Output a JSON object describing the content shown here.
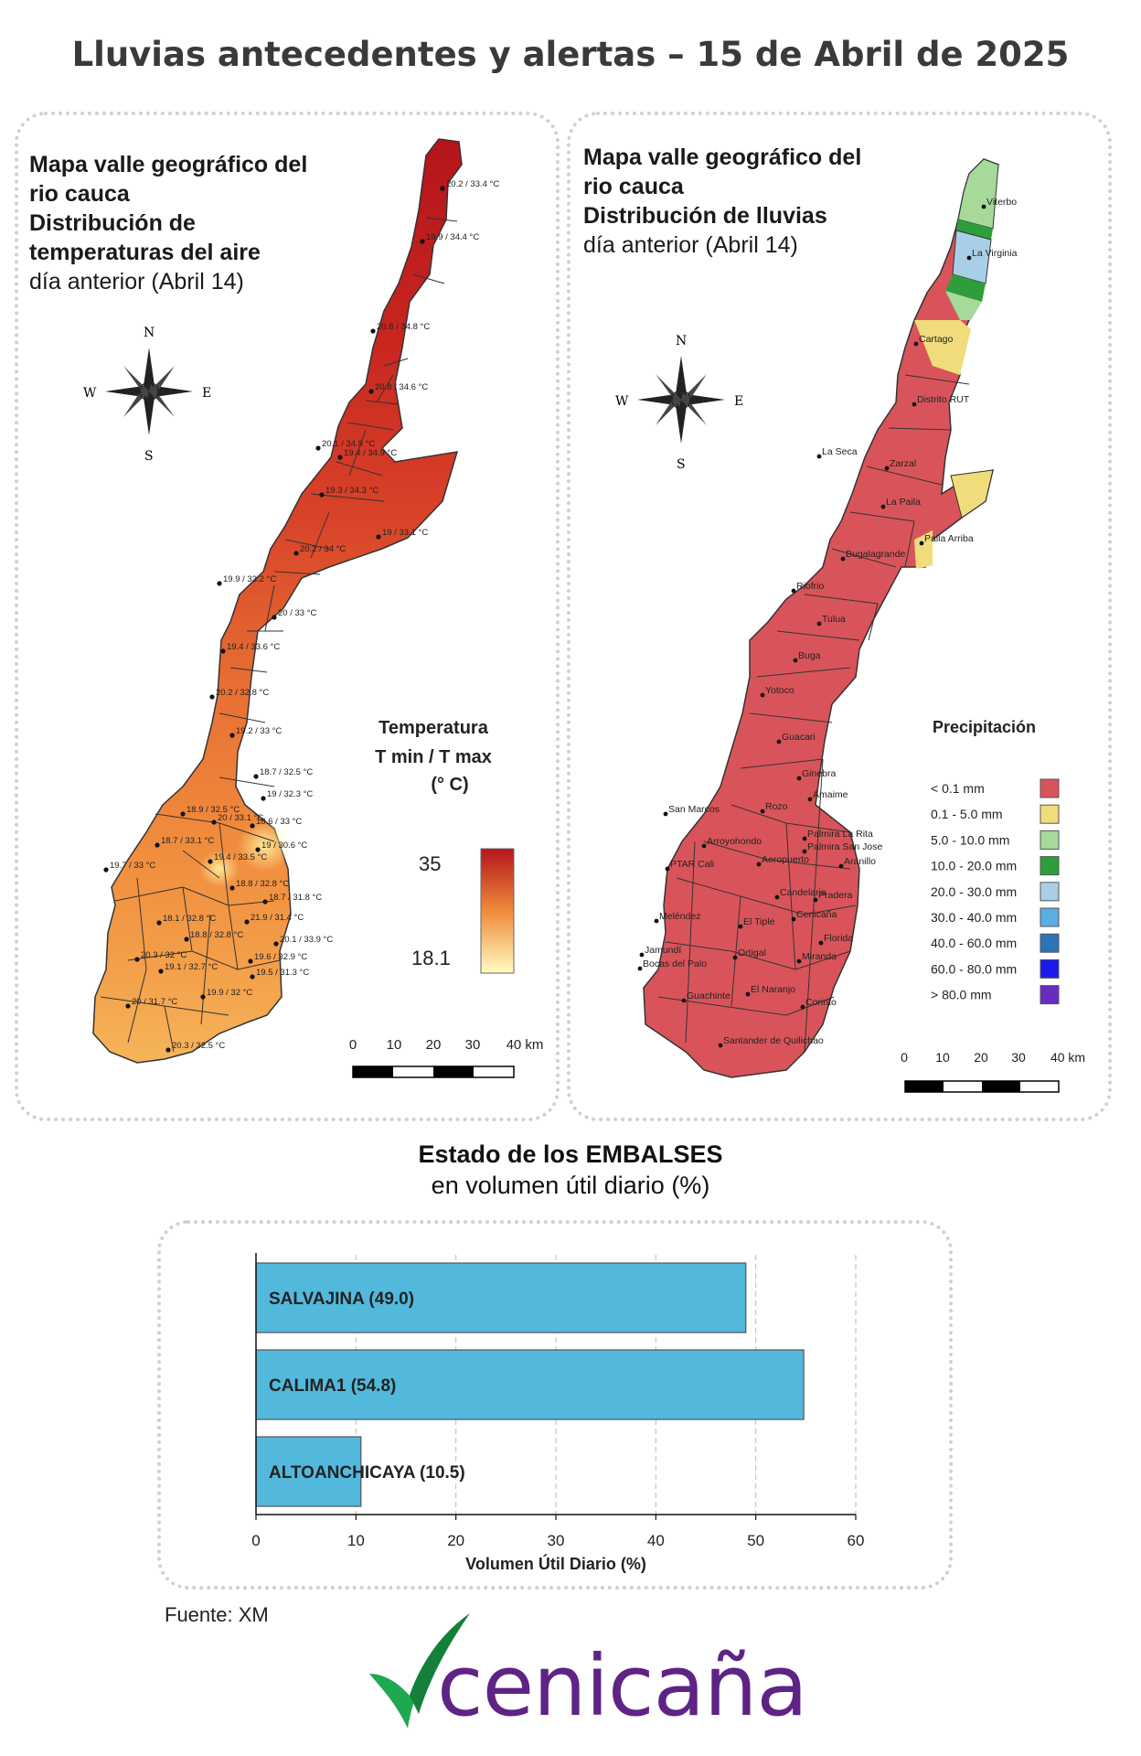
{
  "title": "Lluvias antecedentes y alertas – 15 de Abril de 2025",
  "temperature_map": {
    "title_line1": "Mapa valle geográfico del",
    "title_line2": "rio cauca",
    "title_line3": "Distribución de",
    "title_line4": "temperaturas del aire",
    "title_line5": "día anterior (Abril 14)",
    "compass": {
      "n": "N",
      "s": "S",
      "e": "E",
      "w": "W"
    },
    "legend_line1": "Temperatura",
    "legend_line2": "T min / T max",
    "legend_line3": "(° C)",
    "legend_max": "35",
    "legend_min": "18.1",
    "scale": [
      "0",
      "10",
      "20",
      "30",
      "40 km"
    ],
    "stations": [
      "20.2 / 33.4 °C",
      "19.9 / 34.4 °C",
      "20.8 / 34.8 °C",
      "20.8 / 34.6 °C",
      "20.1 / 34.9 °C",
      "19.4 / 34.9 °C",
      "19.3 / 34.3 °C",
      "19 / 33.1 °C",
      "20.2 / 34 °C",
      "19.9 / 33.2 °C",
      "20 / 33 °C",
      "19.4 / 33.6 °C",
      "20.2 / 32.8 °C",
      "19.2 / 33 °C",
      "18.7 / 32.5 °C",
      "19 / 32.3 °C",
      "18.9 / 32.5 °C",
      "20 / 33.1 °C",
      "18.6 / 33 °C",
      "18.7 / 33.1 °C",
      "19 / 30.6 °C",
      "19.4 / 33.5 °C",
      "19.7 / 33 °C",
      "18.8 / 32.8 °C",
      "18.7 / 31.8 °C",
      "18.1 / 32.8 °C",
      "21.9 / 31.4 °C",
      "18.8 / 32.8 °C",
      "20.1 / 33.9 °C",
      "20.3 / 32 °C",
      "19.6 / 32.9 °C",
      "19.1 / 32.7 °C",
      "19.5 / 31.3 °C",
      "19.9 / 32 °C",
      "20 / 31.7 °C",
      "20.3 / 32.5 °C"
    ]
  },
  "rain_map": {
    "title_line1": "Mapa valle geográfico del",
    "title_line2": "rio cauca",
    "title_line3": "Distribución de lluvias",
    "title_line4": "día anterior (Abril 14)",
    "compass": {
      "n": "N",
      "s": "S",
      "e": "E",
      "w": "W"
    },
    "legend_title": "Precipitación",
    "legend": [
      {
        "label": "< 0.1 mm",
        "color": "#d9545a"
      },
      {
        "label": "0.1 - 5.0 mm",
        "color": "#f0dc7a"
      },
      {
        "label": "5.0 - 10.0 mm",
        "color": "#a6d99a"
      },
      {
        "label": "10.0 - 20.0 mm",
        "color": "#2e9e3a"
      },
      {
        "label": "20.0 - 30.0 mm",
        "color": "#a9cfe8"
      },
      {
        "label": "30.0 - 40.0 mm",
        "color": "#5aaee3"
      },
      {
        "label": "40.0 - 60.0 mm",
        "color": "#2c74b8"
      },
      {
        "label": "60.0 - 80.0 mm",
        "color": "#1a1aee"
      },
      {
        "label": "> 80.0 mm",
        "color": "#6a2bc0"
      }
    ],
    "scale": [
      "0",
      "10",
      "20",
      "30",
      "40 km"
    ],
    "places": [
      "Viterbo",
      "La Virginia",
      "Cartago",
      "Distrito RUT",
      "La Seca",
      "Zarzal",
      "La Paila",
      "Paila Arriba",
      "Bugalagrande",
      "Riofrio",
      "Tulua",
      "Buga",
      "Yotoco",
      "Guacari",
      "Ginebra",
      "Amaime",
      "San Marcos",
      "Rozo",
      "Palmira La Rita",
      "Arroyohondo",
      "Palmira San Jose",
      "Aeropuerto",
      "Aranillo",
      "PTAR Cali",
      "Candelaria",
      "Pradera",
      "Cenicaña",
      "Meléndez",
      "El Tiple",
      "Florida",
      "Jamundí",
      "Bocas del Palo",
      "Ortigal",
      "Miranda",
      "Guachinte",
      "El Naranjo",
      "Corinto",
      "Santander de Quilichao"
    ]
  },
  "reservoirs": {
    "title_line1": "Estado de los EMBALSES",
    "title_line2": "en volumen útil diario (%)",
    "source": "Fuente: XM"
  },
  "chart_data": {
    "type": "bar",
    "orientation": "horizontal",
    "categories": [
      "SALVAJINA (49.0)",
      "CALIMA1 (54.8)",
      "ALTOANCHICAYA (10.5)"
    ],
    "values": [
      49.0,
      54.8,
      10.5
    ],
    "xlabel": "Volumen Útil Diario (%)",
    "xlim": [
      0,
      60
    ],
    "xticks": [
      "0",
      "10",
      "20",
      "30",
      "40",
      "50",
      "60"
    ],
    "bar_color": "#52b9dc",
    "grid": "vertical dashed"
  },
  "logo": {
    "text": "cenicaña",
    "color": "#5e2384",
    "mark_color": "#1fa84f"
  }
}
